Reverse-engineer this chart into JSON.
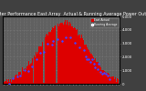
{
  "title": "Solar PV/Inverter Performance East Array  Actual & Running Average Power Output",
  "title_fontsize": 3.5,
  "bg_color": "#404040",
  "plot_bg_color": "#606060",
  "bar_color": "#dd0000",
  "bar_edge_color": "#dd0000",
  "avg_color": "#4444ff",
  "grid_color": "#909090",
  "ylim": [
    0,
    5000
  ],
  "num_bars": 288,
  "legend_labels": [
    "East Actual",
    "Running Average"
  ],
  "legend_colors": [
    "#dd0000",
    "#4444ff"
  ],
  "yticks": [
    0,
    1000,
    2000,
    3000,
    4000,
    5000
  ],
  "ytick_labels": [
    "0",
    "1,000",
    "2,000",
    "3,000",
    "4,000",
    "5,000"
  ]
}
